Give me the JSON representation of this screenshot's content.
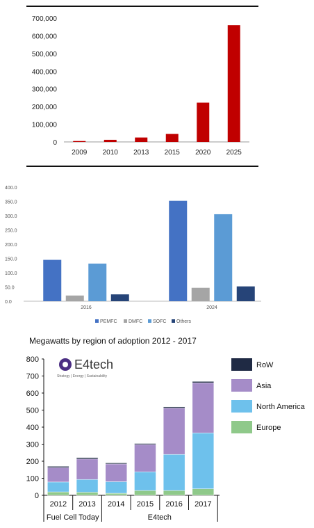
{
  "chart_data": [
    {
      "type": "bar",
      "categories": [
        "2009",
        "2010",
        "2013",
        "2015",
        "2020",
        "2025"
      ],
      "values": [
        5000,
        12000,
        25000,
        45000,
        222000,
        660000
      ],
      "ylim": [
        0,
        700000
      ],
      "yticks": [
        "0",
        "100,000",
        "200,000",
        "300,000",
        "400,000",
        "500,000",
        "600,000",
        "700,000"
      ],
      "grid": false,
      "colors": {
        "bar": "#c00000"
      }
    },
    {
      "type": "bar",
      "categories": [
        "2016",
        "2024"
      ],
      "series": [
        {
          "name": "PEMFC",
          "values": [
            145,
            352
          ],
          "color": "#4472c4"
        },
        {
          "name": "DMFC",
          "values": [
            20,
            47
          ],
          "color": "#a5a5a5"
        },
        {
          "name": "SOFC",
          "values": [
            132,
            305
          ],
          "color": "#5b9bd5"
        },
        {
          "name": "Others",
          "values": [
            24,
            52
          ],
          "color": "#264478"
        }
      ],
      "ylim": [
        0,
        400
      ],
      "yticks": [
        "0.0",
        "50.0",
        "100.0",
        "150.0",
        "200.0",
        "250.0",
        "300.0",
        "350.0",
        "400.0"
      ],
      "legend_position": "bottom",
      "grid": false
    },
    {
      "type": "bar",
      "stacked": true,
      "title": "Megawatts by region of adoption 2012 - 2017",
      "logo": {
        "name": "E4tech",
        "tagline": "Strategy | Energy | Sustainability"
      },
      "categories": [
        "2012",
        "2013",
        "2014",
        "2015",
        "2016",
        "2017"
      ],
      "groups": [
        {
          "label": "Fuel Cell Today",
          "categories": [
            "2012",
            "2013"
          ]
        },
        {
          "label": "E4tech",
          "categories": [
            "2014",
            "2015",
            "2016",
            "2017"
          ]
        }
      ],
      "series": [
        {
          "name": "Europe",
          "values": [
            20,
            18,
            12,
            28,
            28,
            38
          ],
          "color": "#8fc98a"
        },
        {
          "name": "North America",
          "values": [
            58,
            75,
            68,
            110,
            212,
            328
          ],
          "color": "#6ec1ec"
        },
        {
          "name": "Asia",
          "values": [
            85,
            120,
            104,
            160,
            272,
            294
          ],
          "color": "#a58cc8"
        },
        {
          "name": "RoW",
          "values": [
            7,
            8,
            6,
            6,
            7,
            8
          ],
          "color": "#1f2a44"
        }
      ],
      "ylim": [
        0,
        800
      ],
      "yticks": [
        "0",
        "100",
        "200",
        "300",
        "400",
        "500",
        "600",
        "700",
        "800"
      ],
      "legend_order": [
        "RoW",
        "Asia",
        "North America",
        "Europe"
      ],
      "legend_position": "right",
      "grid": false
    }
  ]
}
